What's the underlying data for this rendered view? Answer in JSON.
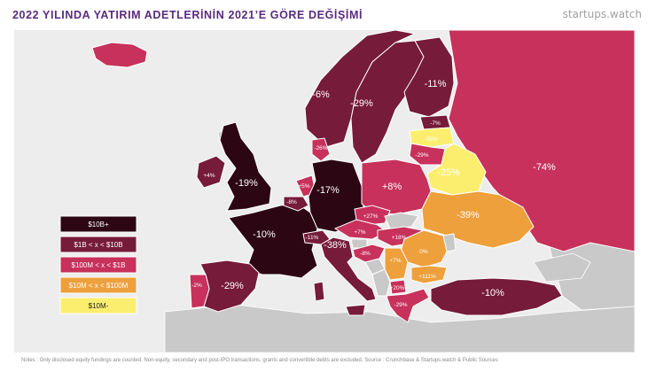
{
  "title": "2022 YILINDA YATIRIM ADETLERİNİN 2021’E GÖRE DEĞİŞİMİ",
  "brand": "startups.watch",
  "notes": "Notes : Only disclosed equity fundings are counted. Non-equity, secondary and post-IPO transactions, grants and convertible debts are excluded.  Source : Crunchbase & Startups.watch & Public Sources",
  "colors": {
    "sea": "#ededed",
    "nodata": "#c9c9c9",
    "tier1": "#2c0613",
    "tier2": "#761b39",
    "tier3": "#c7315b",
    "tier4": "#eda03c",
    "tier5": "#fbee6f",
    "border": "#ffffff"
  },
  "legend": [
    {
      "label": "$10B+",
      "color_key": "tier1"
    },
    {
      "label": "$1B < x < $10B",
      "color_key": "tier2"
    },
    {
      "label": "$100M < x < $1B",
      "color_key": "tier3"
    },
    {
      "label": "$10M < x < $100M",
      "color_key": "tier4"
    },
    {
      "label": "$10M-",
      "color_key": "tier5"
    }
  ],
  "countries": {
    "uk": "-19%",
    "ireland": "+4%",
    "france": "-10%",
    "spain": "-29%",
    "portugal": "-2%",
    "germany": "-17%",
    "netherlands": "+5%",
    "belgium": "-8%",
    "switzerland": "-11%",
    "italy": "-38%",
    "austria": "+7%",
    "czechia": "+27%",
    "hungary": "+18%",
    "poland": "+8%",
    "norway": "-6%",
    "sweden": "-29%",
    "finland": "-11%",
    "estonia": "-7%",
    "latvia": "-35%",
    "lithuania": "-29%",
    "denmark": "-26%",
    "belarus": "-25%",
    "ukraine": "-39%",
    "russia": "-74%",
    "romania": "0%",
    "bulgaria": "+111%",
    "serbia": "+7%",
    "croatia": "-8%",
    "greece": "-29%",
    "macedonia": "+20%",
    "turkey": "-10%"
  }
}
